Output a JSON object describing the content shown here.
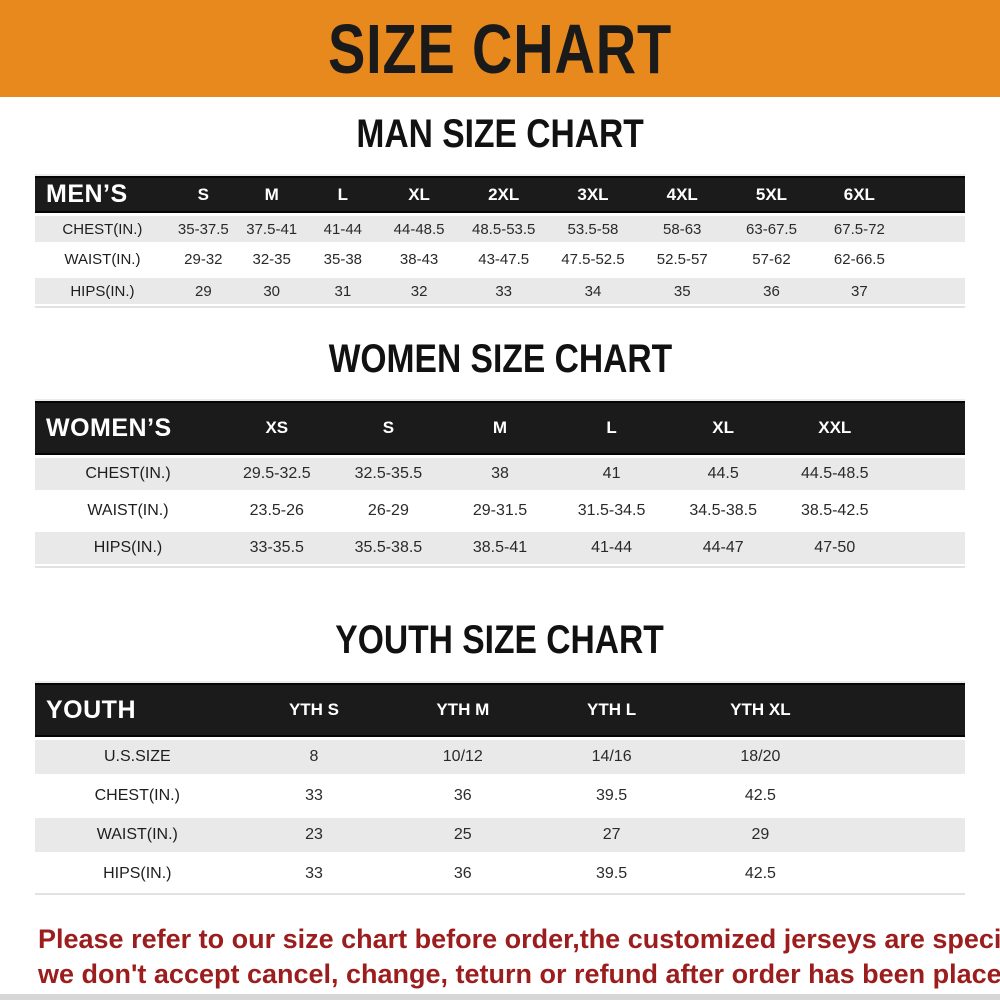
{
  "banner": {
    "title": "SIZE CHART"
  },
  "colors": {
    "banner_orange": "#E8891E",
    "header_black": "#1B1B1B",
    "row_gray": "#E9E9E9",
    "footer_red": "#9C1D1D"
  },
  "sections": [
    {
      "id": "men",
      "title": "MAN SIZE CHART",
      "table": {
        "label_header": "MEN’S",
        "columns": [
          "S",
          "M",
          "L",
          "XL",
          "2XL",
          "3XL",
          "4XL",
          "5XL",
          "6XL"
        ],
        "rows": [
          {
            "label": "CHEST(IN.)",
            "values": [
              "35-37.5",
              "37.5-41",
              "41-44",
              "44-48.5",
              "48.5-53.5",
              "53.5-58",
              "58-63",
              "63-67.5",
              "67.5-72"
            ]
          },
          {
            "label": "WAIST(IN.)",
            "values": [
              "29-32",
              "32-35",
              "35-38",
              "38-43",
              "43-47.5",
              "47.5-52.5",
              "52.5-57",
              "57-62",
              "62-66.5"
            ]
          },
          {
            "label": "HIPS(IN.)",
            "values": [
              "29",
              "30",
              "31",
              "32",
              "33",
              "34",
              "35",
              "36",
              "37"
            ]
          }
        ]
      }
    },
    {
      "id": "women",
      "title": "WOMEN SIZE CHART",
      "table": {
        "label_header": "WOMEN’S",
        "columns": [
          "XS",
          "S",
          "M",
          "L",
          "XL",
          "XXL"
        ],
        "rows": [
          {
            "label": "CHEST(IN.)",
            "values": [
              "29.5-32.5",
              "32.5-35.5",
              "38",
              "41",
              "44.5",
              "44.5-48.5"
            ]
          },
          {
            "label": "WAIST(IN.)",
            "values": [
              "23.5-26",
              "26-29",
              "29-31.5",
              "31.5-34.5",
              "34.5-38.5",
              "38.5-42.5"
            ]
          },
          {
            "label": "HIPS(IN.)",
            "values": [
              "33-35.5",
              "35.5-38.5",
              "38.5-41",
              "41-44",
              "44-47",
              "47-50"
            ]
          }
        ]
      }
    },
    {
      "id": "youth",
      "title": "YOUTH SIZE CHART",
      "table": {
        "label_header": "YOUTH",
        "columns": [
          "YTH S",
          "YTH M",
          "YTH L",
          "YTH XL"
        ],
        "rows": [
          {
            "label": "U.S.SIZE",
            "values": [
              "8",
              "10/12",
              "14/16",
              "18/20"
            ]
          },
          {
            "label": "CHEST(IN.)",
            "values": [
              "33",
              "36",
              "39.5",
              "42.5"
            ]
          },
          {
            "label": "WAIST(IN.)",
            "values": [
              "23",
              "25",
              "27",
              "29"
            ]
          },
          {
            "label": "HIPS(IN.)",
            "values": [
              "33",
              "36",
              "39.5",
              "42.5"
            ]
          }
        ]
      }
    }
  ],
  "footer": {
    "line1": "Please refer to our size chart before order,the customized jerseys are special products,",
    "line2": "we don't accept cancel, change, teturn or refund after order has been placed!"
  }
}
